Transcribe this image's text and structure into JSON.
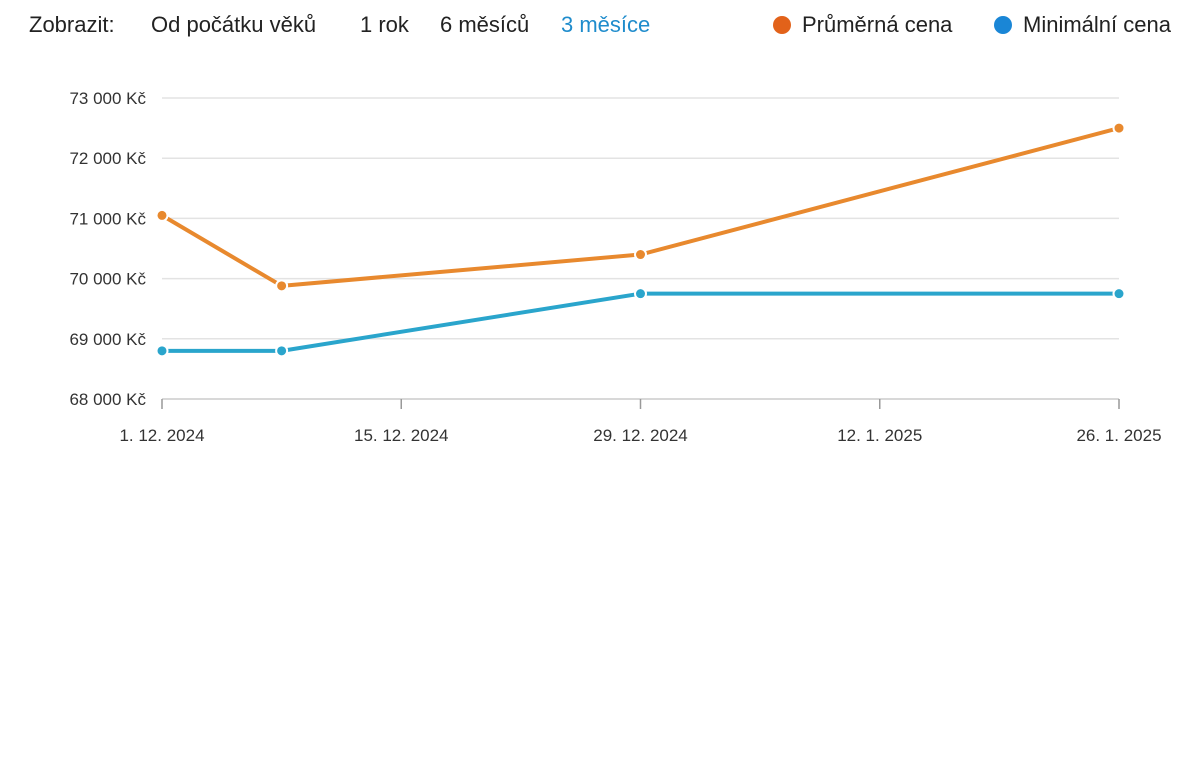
{
  "toolbar": {
    "show_label": "Zobrazit:",
    "ranges": [
      "Od počátku věků",
      "1 rok",
      "6 měsíců",
      "3 měsíce"
    ],
    "active_range": "3 měsíce"
  },
  "legend": {
    "items": [
      {
        "label": "Průměrná cena",
        "color": "#e2621a"
      },
      {
        "label": "Minimální cena",
        "color": "#1a86d6"
      }
    ]
  },
  "chart_data": {
    "type": "line",
    "x": [
      "2024-12-01",
      "2024-12-08",
      "2024-12-29",
      "2025-01-26"
    ],
    "series": [
      {
        "name": "Průměrná cena",
        "color": "#e8892e",
        "values": [
          71050,
          69880,
          70400,
          72500
        ]
      },
      {
        "name": "Minimální cena",
        "color": "#2aa5cc",
        "values": [
          68800,
          68800,
          69750,
          69750
        ]
      }
    ],
    "ylim": [
      68000,
      73000
    ],
    "y_ticks": [
      68000,
      69000,
      70000,
      71000,
      72000,
      73000
    ],
    "y_tick_labels": [
      "68 000 Kč",
      "69 000 Kč",
      "70 000 Kč",
      "71 000 Kč",
      "72 000 Kč",
      "73 000 Kč"
    ],
    "x_ticks": [
      "2024-12-01",
      "2024-12-15",
      "2024-12-29",
      "2025-01-12",
      "2025-01-26"
    ],
    "x_tick_labels": [
      "1. 12. 2024",
      "15. 12. 2024",
      "29. 12. 2024",
      "12. 1. 2025",
      "26. 1. 2025"
    ],
    "xlim": [
      "2024-12-01",
      "2025-01-26"
    ],
    "grid": true,
    "legend_position": "top-right"
  }
}
